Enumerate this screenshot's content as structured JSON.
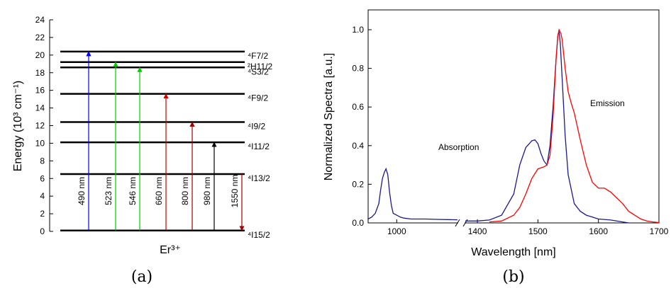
{
  "chart_data": [
    {
      "panel_label": "(a)",
      "type": "energy-level-diagram",
      "ylabel": "Energy (10³ cm⁻¹)",
      "xlabel": "Er³⁺",
      "ylim": [
        0,
        24
      ],
      "yticks": [
        0,
        2,
        4,
        6,
        8,
        10,
        12,
        14,
        16,
        18,
        20,
        22,
        24
      ],
      "grid": false,
      "levels": [
        {
          "label": "⁴I15/2",
          "value": 0.1
        },
        {
          "label": "⁴I13/2",
          "value": 6.5
        },
        {
          "label": "⁴I11/2",
          "value": 10.1
        },
        {
          "label": "⁴I9/2",
          "value": 12.4
        },
        {
          "label": "⁴F9/2",
          "value": 15.6
        },
        {
          "label": "⁴S3/2",
          "value": 18.6
        },
        {
          "label": "²H11/2",
          "value": 19.2
        },
        {
          "label": "⁴F7/2",
          "value": 20.4
        }
      ],
      "transitions": [
        {
          "label": "490 nm",
          "from": 0.1,
          "to": 20.4,
          "color": "#0000ff"
        },
        {
          "label": "523 nm",
          "from": 0.1,
          "to": 19.2,
          "color": "#00d000"
        },
        {
          "label": "546 nm",
          "from": 0.1,
          "to": 18.6,
          "color": "#00d000"
        },
        {
          "label": "660 nm",
          "from": 0.1,
          "to": 15.6,
          "color": "#d00000"
        },
        {
          "label": "800 nm",
          "from": 0.1,
          "to": 12.4,
          "color": "#a00000"
        },
        {
          "label": "980 nm",
          "from": 0.1,
          "to": 10.1,
          "color": "#000000"
        },
        {
          "label": "1550 nm",
          "from": 6.5,
          "to": 0.1,
          "color": "#a00000"
        }
      ]
    },
    {
      "panel_label": "(b)",
      "type": "line",
      "xlabel": "Wavelength [nm]",
      "ylabel": "Normalized Spectra [a.u.]",
      "ylim": [
        0,
        1.1
      ],
      "yticks": [
        "0.0",
        "0.2",
        "0.4",
        "0.6",
        "0.8",
        "1.0"
      ],
      "xticks": [
        "1000",
        "1400",
        "1500",
        "1600",
        "1700"
      ],
      "broken_x_axis": true,
      "x_segments": [
        [
          920,
          1170
        ],
        [
          1380,
          1700
        ]
      ],
      "grid": false,
      "series": [
        {
          "name": "Absorption",
          "color": "#1a1a8c",
          "x": [
            920,
            930,
            940,
            950,
            955,
            960,
            965,
            970,
            975,
            980,
            985,
            990,
            1000,
            1010,
            1020,
            1040,
            1080,
            1120,
            1170,
            1380,
            1400,
            1420,
            1440,
            1460,
            1470,
            1480,
            1490,
            1495,
            1500,
            1505,
            1510,
            1515,
            1520,
            1525,
            1530,
            1533,
            1535,
            1537,
            1540,
            1545,
            1550,
            1560,
            1570,
            1580,
            1590,
            1600,
            1620,
            1640,
            1650
          ],
          "y": [
            0.02,
            0.03,
            0.05,
            0.1,
            0.17,
            0.23,
            0.26,
            0.28,
            0.25,
            0.16,
            0.09,
            0.05,
            0.04,
            0.03,
            0.025,
            0.02,
            0.02,
            0.018,
            0.016,
            0.01,
            0.01,
            0.015,
            0.04,
            0.15,
            0.3,
            0.39,
            0.425,
            0.43,
            0.41,
            0.36,
            0.32,
            0.3,
            0.4,
            0.6,
            0.85,
            0.97,
            0.99,
            0.93,
            0.75,
            0.45,
            0.25,
            0.1,
            0.06,
            0.04,
            0.03,
            0.02,
            0.015,
            0.005,
            0
          ]
        },
        {
          "name": "Emission",
          "color": "#ff0000",
          "x": [
            1420,
            1440,
            1460,
            1470,
            1480,
            1490,
            1500,
            1510,
            1515,
            1520,
            1525,
            1530,
            1533,
            1535,
            1538,
            1540,
            1545,
            1550,
            1555,
            1560,
            1570,
            1580,
            1590,
            1600,
            1610,
            1620,
            1630,
            1640,
            1650,
            1660,
            1670,
            1680,
            1690,
            1700
          ],
          "y": [
            0.005,
            0.01,
            0.04,
            0.08,
            0.15,
            0.23,
            0.28,
            0.29,
            0.3,
            0.35,
            0.55,
            0.85,
            0.97,
            1.0,
            0.98,
            0.95,
            0.8,
            0.68,
            0.62,
            0.57,
            0.43,
            0.3,
            0.21,
            0.18,
            0.18,
            0.16,
            0.13,
            0.1,
            0.06,
            0.04,
            0.02,
            0.01,
            0.005,
            0.002
          ]
        }
      ]
    }
  ]
}
